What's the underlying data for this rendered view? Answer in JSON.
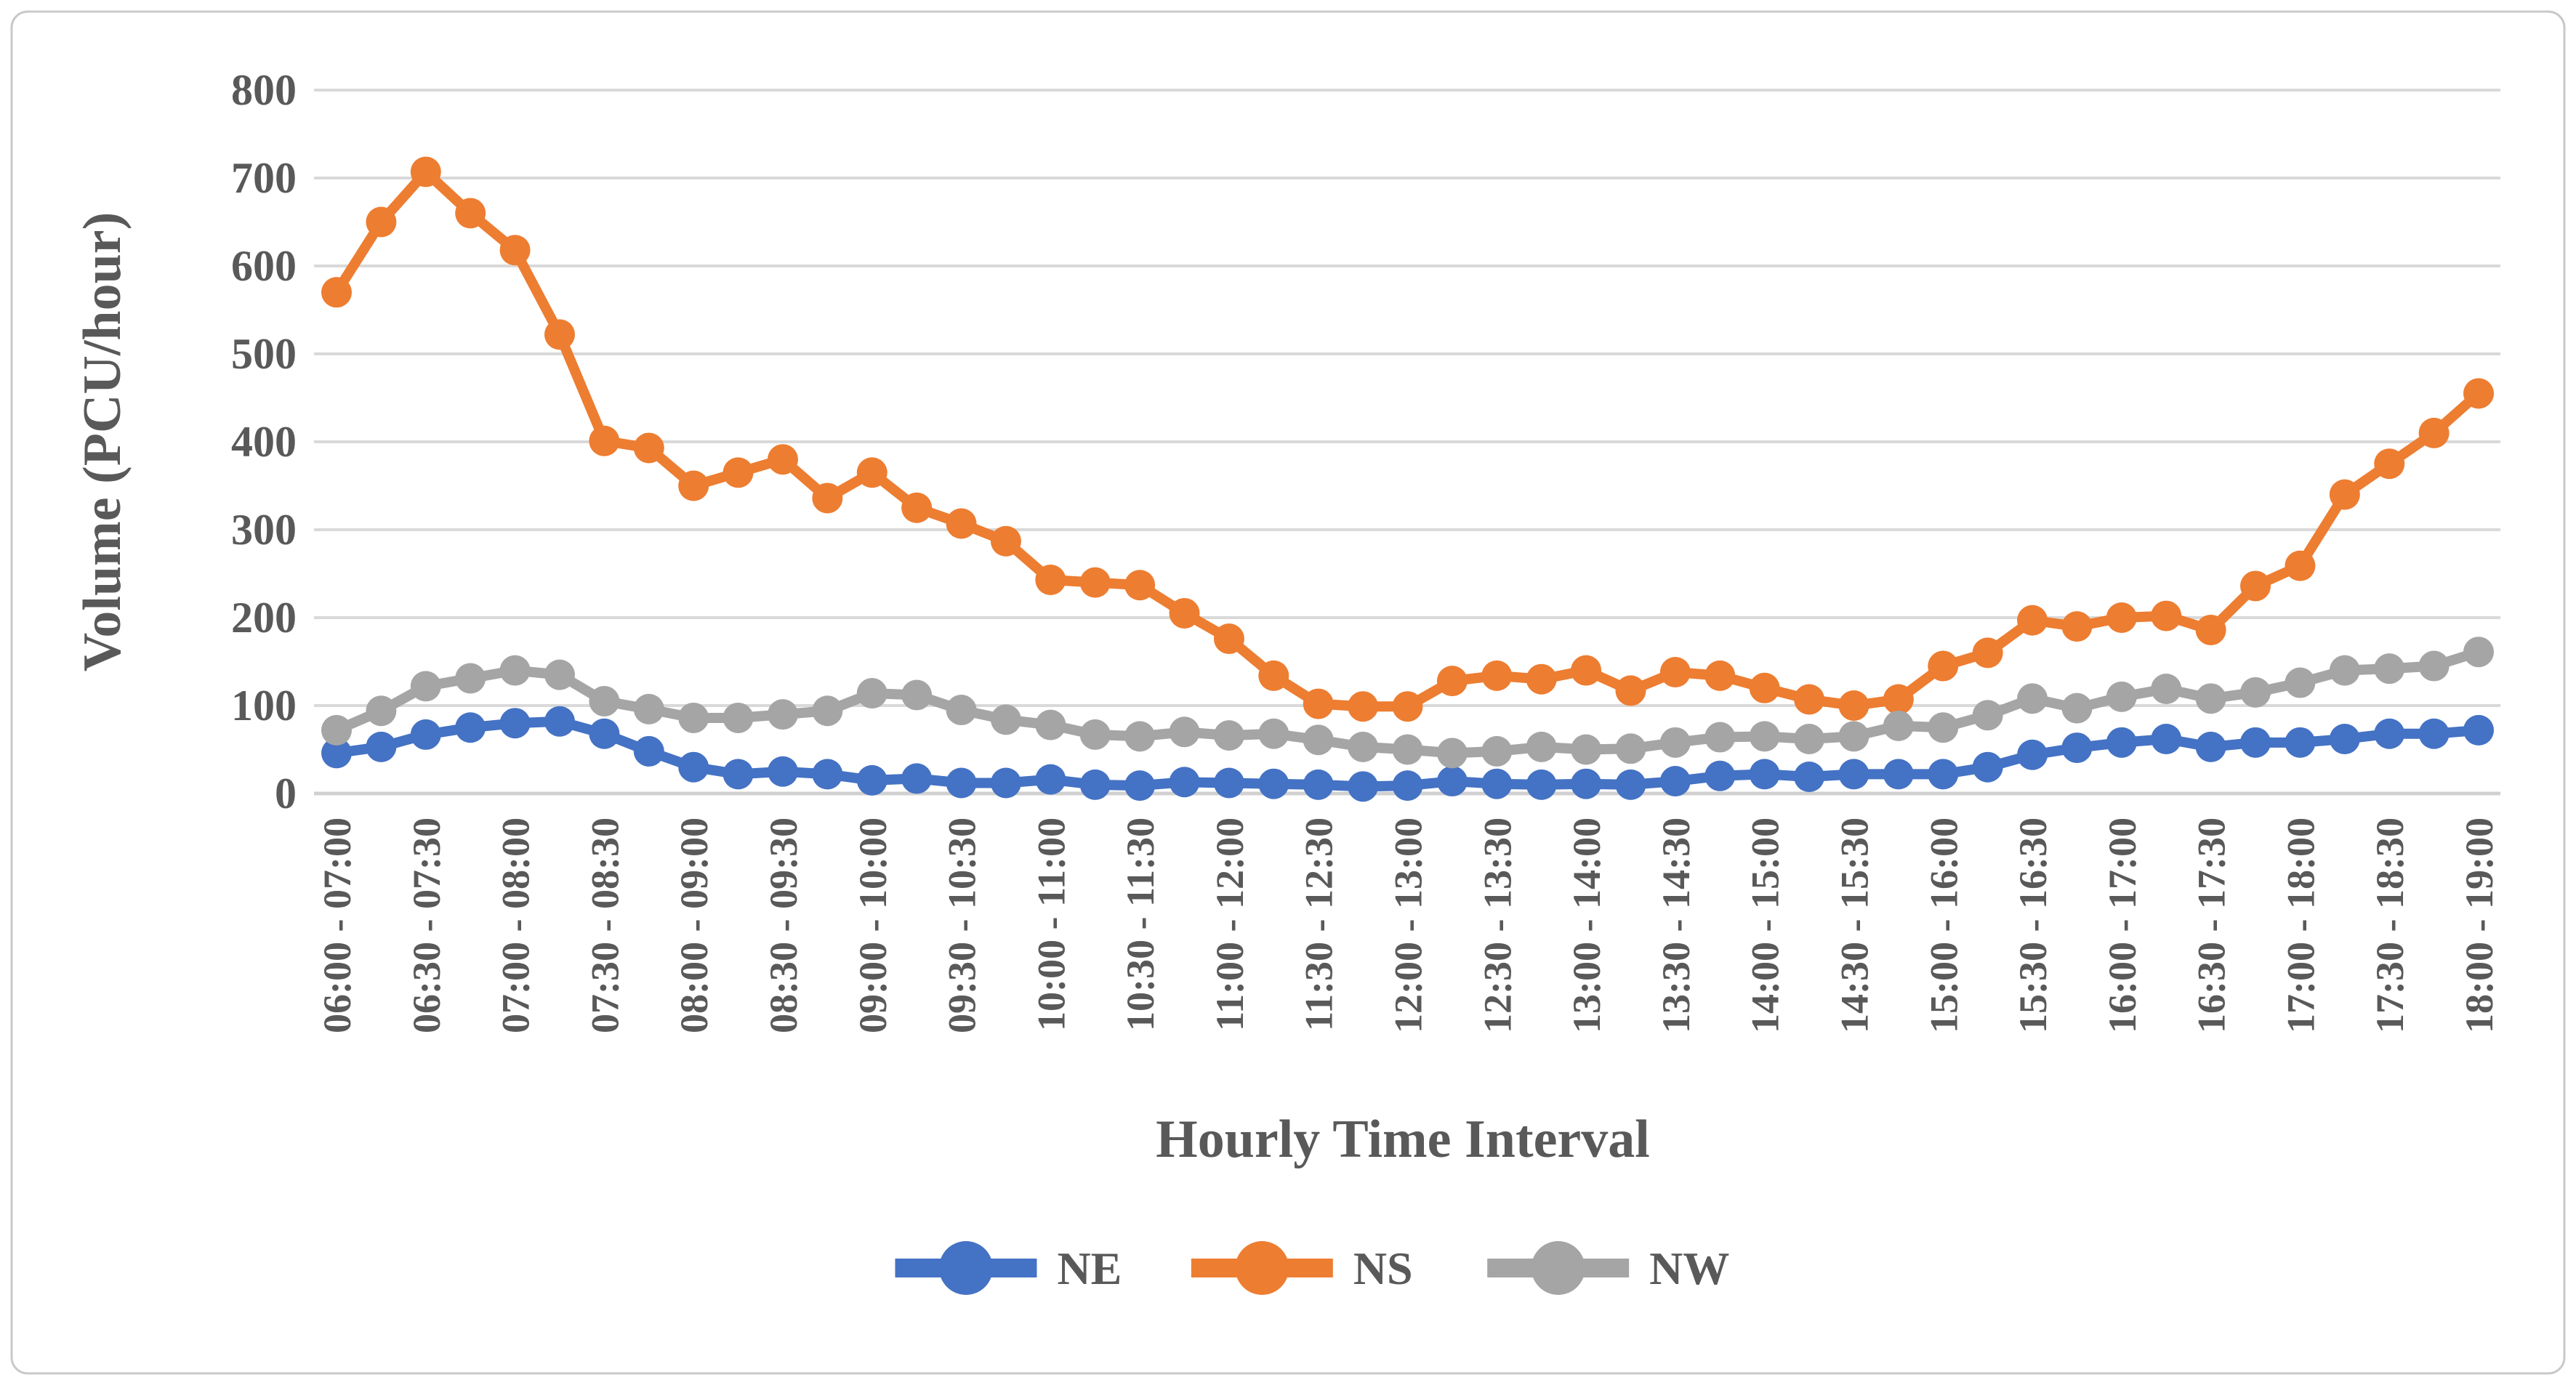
{
  "chart_data": {
    "type": "line",
    "title": "",
    "xlabel": "Hourly Time Interval",
    "ylabel": "Volume (PCU/hour)",
    "ylim": [
      0,
      800
    ],
    "y_tick_step": 100,
    "y_tick_labels": [
      "0",
      "100",
      "200",
      "300",
      "400",
      "500",
      "600",
      "700",
      "800"
    ],
    "grid": "horizontal",
    "n_points": 49,
    "points_per_label": 2,
    "x_tick_labels": [
      "06:00 - 07:00",
      "06:30 - 07:30",
      "07:00 - 08:00",
      "07:30 - 08:30",
      "08:00 - 09:00",
      "08:30 - 09:30",
      "09:00 - 10:00",
      "09:30 - 10:30",
      "10:00 - 11:00",
      "10:30 - 11:30",
      "11:00 - 12:00",
      "11:30 - 12:30",
      "12:00 - 13:00",
      "12:30 - 13:30",
      "13:00 - 14:00",
      "13:30 - 14:30",
      "14:00 - 15:00",
      "14:30 - 15:30",
      "15:00 - 16:00",
      "15:30 - 16:30",
      "16:00 - 17:00",
      "16:30 - 17:30",
      "17:00 - 18:00",
      "17:30 - 18:30",
      "18:00 - 19:00"
    ],
    "legend_position": "bottom",
    "series": [
      {
        "name": "NE",
        "color": "#4472C4",
        "values": [
          46,
          53,
          67,
          75,
          80,
          82,
          68,
          48,
          30,
          22,
          25,
          22,
          15,
          17,
          12,
          12,
          16,
          10,
          9,
          13,
          12,
          11,
          10,
          8,
          9,
          14,
          11,
          10,
          11,
          10,
          14,
          20,
          22,
          19,
          22,
          22,
          22,
          30,
          44,
          52,
          58,
          62,
          53,
          58,
          58,
          62,
          68,
          68,
          72
        ]
      },
      {
        "name": "NS",
        "color": "#ED7D31",
        "values": [
          570,
          650,
          707,
          660,
          618,
          522,
          401,
          393,
          350,
          365,
          380,
          336,
          365,
          325,
          307,
          287,
          243,
          240,
          237,
          205,
          176,
          134,
          102,
          99,
          99,
          128,
          134,
          130,
          140,
          117,
          138,
          134,
          120,
          107,
          100,
          107,
          145,
          160,
          197,
          190,
          200,
          202,
          186,
          236,
          259,
          340,
          375,
          410,
          455
        ]
      },
      {
        "name": "NW",
        "color": "#A5A5A5",
        "values": [
          72,
          94,
          122,
          131,
          140,
          135,
          105,
          96,
          86,
          86,
          90,
          94,
          114,
          112,
          95,
          84,
          78,
          67,
          65,
          70,
          66,
          68,
          61,
          53,
          50,
          46,
          48,
          53,
          50,
          51,
          58,
          64,
          65,
          62,
          65,
          77,
          75,
          89,
          108,
          97,
          110,
          119,
          108,
          115,
          126,
          140,
          142,
          145,
          161
        ]
      }
    ],
    "colors": {
      "text": "#595959",
      "gridline": "#D9D9D9",
      "axis_line": "#D0D0D0",
      "border": "#C9C9C9",
      "background": "#FFFFFF"
    }
  }
}
